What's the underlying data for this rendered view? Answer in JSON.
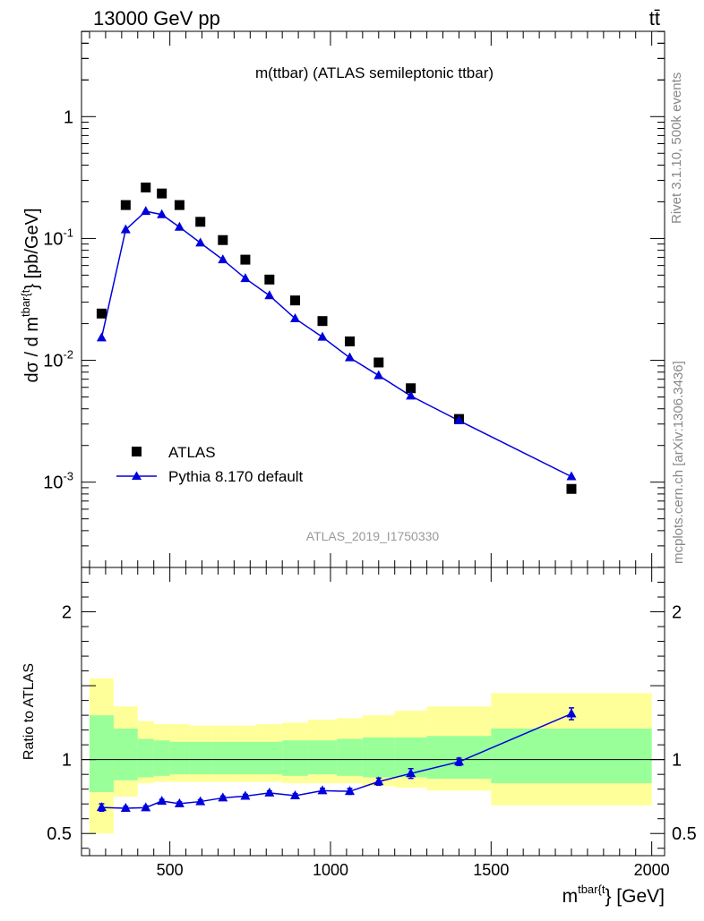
{
  "header": {
    "left": "13000 GeV pp",
    "right": "tt̄"
  },
  "side_labels": {
    "rivet": "Rivet 3.1.10,  500k events",
    "mcplots": "mcplots.cern.ch [arXiv:1306.3436]"
  },
  "chart_data": {
    "type": "scatter",
    "title": "m(ttbar) (ATLAS semileptonic ttbar)",
    "analysis_tag": "ATLAS_2019_I1750330",
    "xlabel": "m^{tbar{t}} [GeV]",
    "ylabel": "dσ / d m^{tbar{t}} [pb/GeV]",
    "ratio_ylabel": "Ratio to ATLAS",
    "xlim": [
      225,
      2040
    ],
    "ylim_log": [
      0.0001995,
      5.0119
    ],
    "ratio_ylim": [
      0.35,
      2.3
    ],
    "x_ticks": [
      500,
      1000,
      1500,
      2000
    ],
    "y_ticks": [
      0.001,
      0.01,
      0.1,
      1
    ],
    "y_tick_labels": [
      {
        "mant": "10",
        "exp": "-3"
      },
      {
        "mant": "10",
        "exp": "-2"
      },
      {
        "mant": "10",
        "exp": "-1"
      },
      {
        "mant": "1",
        "exp": ""
      }
    ],
    "ratio_ticks": [
      0.5,
      1,
      2
    ],
    "ratio_tick_labels": [
      "0.5",
      "1",
      "2"
    ],
    "x_tick_labels": [
      "500",
      "1000",
      "1500",
      "2000"
    ],
    "legend": [
      {
        "name": "ATLAS",
        "marker": "square",
        "color": "#000000"
      },
      {
        "name": "Pythia 8.170 default",
        "marker": "triangle",
        "color": "#0000dd"
      }
    ],
    "bin_edges": [
      250,
      325,
      400,
      450,
      500,
      560,
      630,
      700,
      770,
      850,
      930,
      1020,
      1100,
      1200,
      1300,
      1500,
      2000
    ],
    "series": [
      {
        "name": "ATLAS",
        "x": [
          287.5,
          362.5,
          425,
          475,
          530,
          595,
          665,
          735,
          810,
          890,
          975,
          1060,
          1150,
          1250,
          1400,
          1750
        ],
        "y": [
          0.0242,
          0.188,
          0.262,
          0.234,
          0.188,
          0.137,
          0.097,
          0.067,
          0.046,
          0.031,
          0.021,
          0.0143,
          0.0096,
          0.0059,
          0.0033,
          0.00088
        ]
      },
      {
        "name": "Pythia 8.170 default",
        "x": [
          287.5,
          362.5,
          425,
          475,
          530,
          595,
          665,
          735,
          810,
          890,
          975,
          1060,
          1150,
          1250,
          1400,
          1750
        ],
        "y": [
          0.0153,
          0.118,
          0.167,
          0.157,
          0.124,
          0.092,
          0.067,
          0.047,
          0.034,
          0.022,
          0.0155,
          0.0105,
          0.0075,
          0.0051,
          0.0032,
          0.00111
        ]
      }
    ],
    "ratio": {
      "x": [
        287.5,
        362.5,
        425,
        475,
        530,
        595,
        665,
        735,
        810,
        890,
        975,
        1060,
        1150,
        1250,
        1400,
        1750
      ],
      "y": [
        0.676,
        0.671,
        0.675,
        0.719,
        0.702,
        0.716,
        0.741,
        0.753,
        0.775,
        0.756,
        0.79,
        0.785,
        0.851,
        0.906,
        0.985,
        1.31
      ],
      "err": [
        0.025,
        0.012,
        0.012,
        0.012,
        0.012,
        0.012,
        0.012,
        0.012,
        0.013,
        0.014,
        0.016,
        0.02,
        0.024,
        0.033,
        0.025,
        0.04
      ],
      "green_lo": [
        0.78,
        0.86,
        0.88,
        0.89,
        0.9,
        0.9,
        0.9,
        0.9,
        0.9,
        0.89,
        0.9,
        0.89,
        0.88,
        0.88,
        0.87,
        0.84
      ],
      "green_hi": [
        1.3,
        1.21,
        1.14,
        1.13,
        1.12,
        1.12,
        1.12,
        1.12,
        1.12,
        1.13,
        1.13,
        1.14,
        1.15,
        1.15,
        1.16,
        1.21
      ],
      "yellow_lo": [
        0.5,
        0.75,
        0.84,
        0.85,
        0.85,
        0.85,
        0.85,
        0.85,
        0.85,
        0.84,
        0.84,
        0.84,
        0.82,
        0.81,
        0.79,
        0.69
      ],
      "yellow_hi": [
        1.55,
        1.36,
        1.26,
        1.24,
        1.24,
        1.23,
        1.23,
        1.23,
        1.24,
        1.25,
        1.27,
        1.28,
        1.3,
        1.33,
        1.36,
        1.45
      ]
    }
  }
}
